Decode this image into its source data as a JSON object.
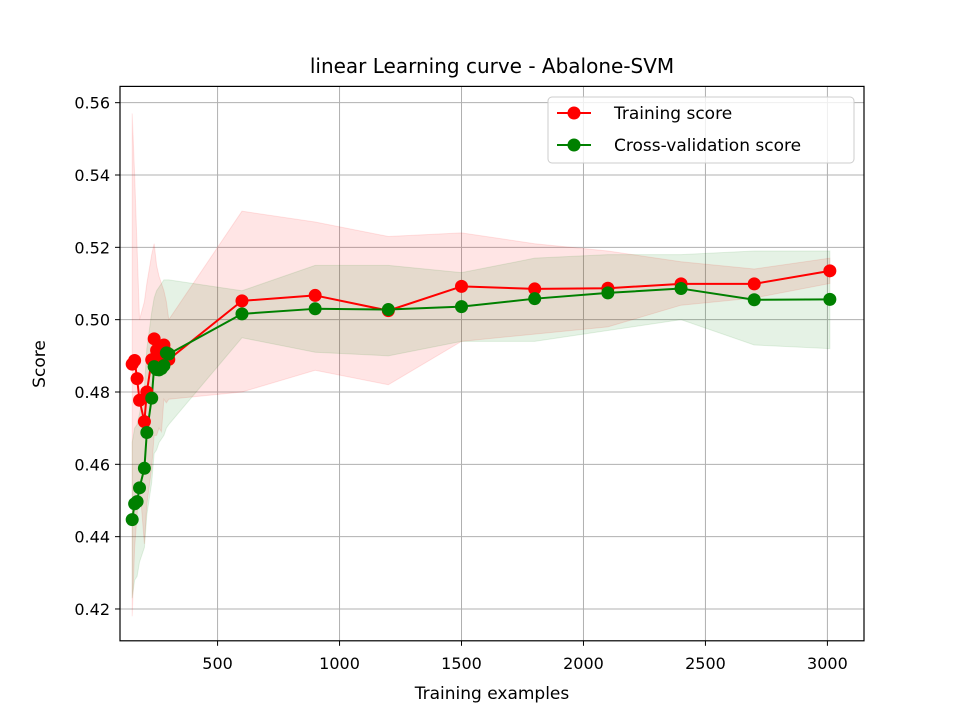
{
  "chart_data": {
    "type": "line",
    "title": "linear Learning curve - Abalone-SVM",
    "xlabel": "Training examples",
    "ylabel": "Score",
    "xlim": [
      100,
      3150
    ],
    "ylim": [
      0.4112,
      0.5645
    ],
    "xticks": [
      500,
      1000,
      1500,
      2000,
      2500,
      3000
    ],
    "yticks": [
      0.42,
      0.44,
      0.46,
      0.48,
      0.5,
      0.52,
      0.54,
      0.56
    ],
    "xtick_labels": [
      "500",
      "1000",
      "1500",
      "2000",
      "2500",
      "3000"
    ],
    "ytick_labels": [
      "0.42",
      "0.44",
      "0.46",
      "0.48",
      "0.50",
      "0.52",
      "0.54",
      "0.56"
    ],
    "grid": true,
    "legend_position": "upper right",
    "series": [
      {
        "name": "Training score",
        "color": "#ff0000",
        "x": [
          150,
          160,
          170,
          180,
          200,
          210,
          230,
          240,
          250,
          260,
          270,
          280,
          290,
          300,
          600,
          900,
          1200,
          1500,
          1800,
          2100,
          2400,
          2700,
          3010
        ],
        "y": [
          0.4877,
          0.4887,
          0.4837,
          0.4777,
          0.4718,
          0.48,
          0.4889,
          0.4947,
          0.4915,
          0.491,
          0.4893,
          0.493,
          0.491,
          0.489,
          0.5052,
          0.5067,
          0.5025,
          0.5092,
          0.5085,
          0.5087,
          0.5099,
          0.5099,
          0.5135
        ],
        "upper": [
          0.557,
          0.54,
          0.52,
          0.5,
          0.505,
          0.51,
          0.518,
          0.521,
          0.515,
          0.512,
          0.51,
          0.508,
          0.505,
          0.5,
          0.53,
          0.527,
          0.523,
          0.524,
          0.521,
          0.519,
          0.516,
          0.514,
          0.517
        ],
        "lower": [
          0.418,
          0.437,
          0.446,
          0.455,
          0.438,
          0.449,
          0.459,
          0.468,
          0.468,
          0.47,
          0.469,
          0.478,
          0.477,
          0.478,
          0.48,
          0.486,
          0.482,
          0.494,
          0.496,
          0.498,
          0.504,
          0.506,
          0.51
        ]
      },
      {
        "name": "Cross-validation score",
        "color": "#008000",
        "x": [
          150,
          160,
          170,
          180,
          200,
          210,
          230,
          240,
          250,
          260,
          270,
          280,
          290,
          300,
          600,
          900,
          1200,
          1500,
          1800,
          2100,
          2400,
          2700,
          3010
        ],
        "y": [
          0.4447,
          0.4491,
          0.4497,
          0.4535,
          0.4589,
          0.4688,
          0.4783,
          0.487,
          0.4862,
          0.4861,
          0.4865,
          0.4873,
          0.4908,
          0.4905,
          0.5016,
          0.503,
          0.5028,
          0.5036,
          0.5058,
          0.5074,
          0.5086,
          0.5055,
          0.5056
        ],
        "upper": [
          0.466,
          0.47,
          0.471,
          0.474,
          0.481,
          0.492,
          0.502,
          0.506,
          0.508,
          0.509,
          0.51,
          0.511,
          0.511,
          0.511,
          0.508,
          0.515,
          0.515,
          0.513,
          0.517,
          0.518,
          0.518,
          0.519,
          0.519
        ],
        "lower": [
          0.423,
          0.428,
          0.429,
          0.433,
          0.437,
          0.446,
          0.455,
          0.463,
          0.464,
          0.466,
          0.467,
          0.468,
          0.47,
          0.471,
          0.495,
          0.491,
          0.49,
          0.494,
          0.494,
          0.497,
          0.5,
          0.493,
          0.492
        ]
      }
    ]
  }
}
